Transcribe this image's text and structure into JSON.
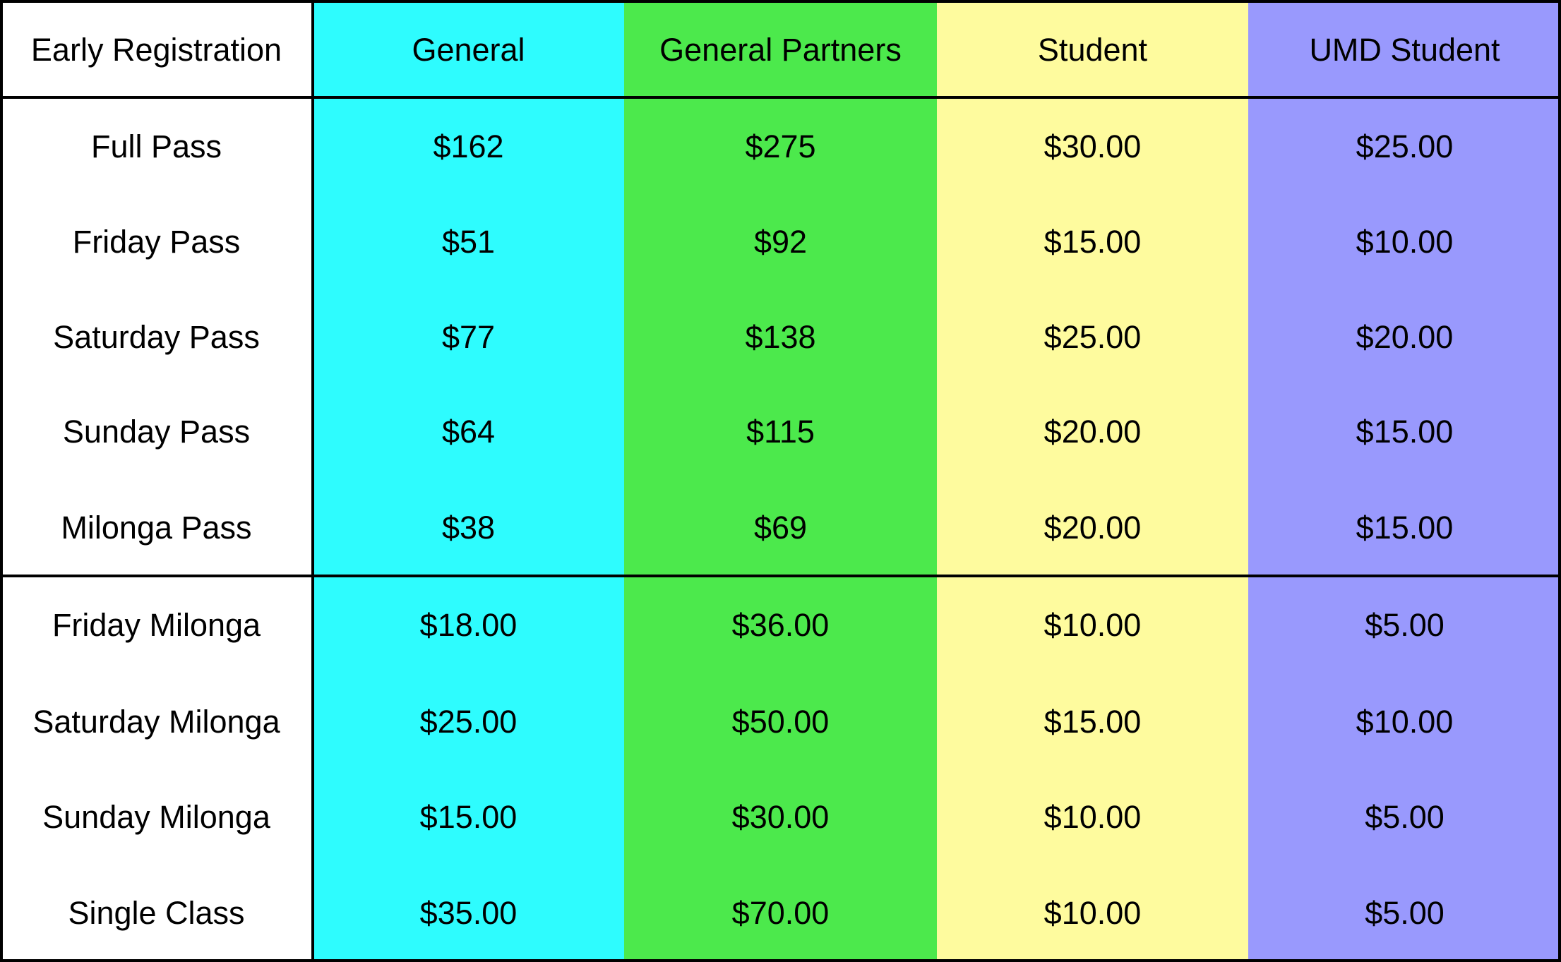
{
  "table": {
    "header": {
      "corner": "Early Registration",
      "columns": [
        {
          "label": "General",
          "color": "#2efcfe"
        },
        {
          "label": "General Partners",
          "color": "#4ce94c"
        },
        {
          "label": "Student",
          "color": "#fefb9e"
        },
        {
          "label": "UMD Student",
          "color": "#9999fd"
        }
      ]
    },
    "rows": [
      {
        "label": "Full Pass",
        "values": [
          "$162",
          "$275",
          "$30.00",
          "$25.00"
        ]
      },
      {
        "label": "Friday Pass",
        "values": [
          "$51",
          "$92",
          "$15.00",
          "$10.00"
        ]
      },
      {
        "label": "Saturday Pass",
        "values": [
          "$77",
          "$138",
          "$25.00",
          "$20.00"
        ]
      },
      {
        "label": "Sunday Pass",
        "values": [
          "$64",
          "$115",
          "$20.00",
          "$15.00"
        ]
      },
      {
        "label": "Milonga Pass",
        "values": [
          "$38",
          "$69",
          "$20.00",
          "$15.00"
        ]
      },
      {
        "label": "Friday Milonga",
        "values": [
          "$18.00",
          "$36.00",
          "$10.00",
          "$5.00"
        ]
      },
      {
        "label": "Saturday Milonga",
        "values": [
          "$25.00",
          "$50.00",
          "$15.00",
          "$10.00"
        ]
      },
      {
        "label": "Sunday Milonga",
        "values": [
          "$15.00",
          "$30.00",
          "$10.00",
          "$5.00"
        ]
      },
      {
        "label": "Single Class",
        "values": [
          "$35.00",
          "$70.00",
          "$10.00",
          "$5.00"
        ]
      }
    ]
  }
}
